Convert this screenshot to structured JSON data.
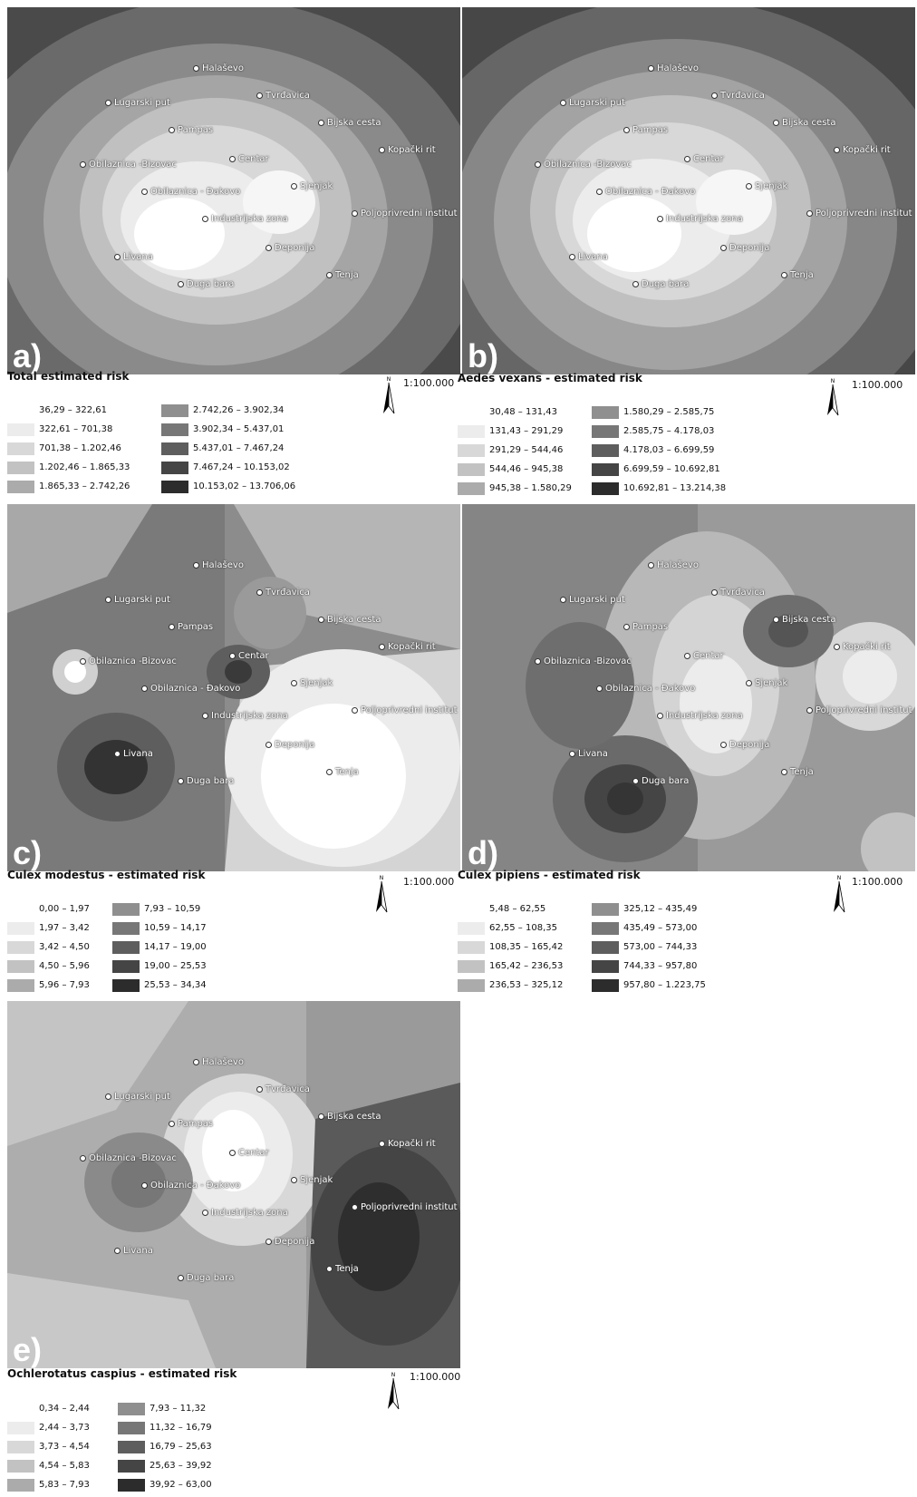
{
  "panels": [
    {
      "id": "a",
      "letter": "a)",
      "title": "Total estimated risk",
      "scale": "1:100.000",
      "places": [
        "Halaševo",
        "Lugarski put",
        "Tvrđavica",
        "Bijska cesta",
        "Pampas",
        "Kopački rit",
        "Obilaznica -Bizovac",
        "Centar",
        "Obilaznica - Đakovo",
        "Sjenjak",
        "Poljoprivredni institut",
        "Industrijska zona",
        "Deponija",
        "Livana",
        "Tenja",
        "Duga bara"
      ],
      "legend": [
        "36,29 – 322,61",
        "322,61 – 701,38",
        "701,38 – 1.202,46",
        "1.202,46 – 1.865,33",
        "1.865,33 – 2.742,26",
        "2.742,26 – 3.902,34",
        "3.902,34 – 5.437,01",
        "5.437,01 – 7.467,24",
        "7.467,24 – 10.153,02",
        "10.153,02 – 13.706,06"
      ]
    },
    {
      "id": "b",
      "letter": "b)",
      "title": "Aedes vexans - estimated risk",
      "scale": "1:100.000",
      "places": [
        "Halaševo",
        "Lugarski put",
        "Tvrđavica",
        "Bijska cesta",
        "Pampas",
        "Kopački rit",
        "Obilaznica -Bizovac",
        "Centar",
        "Obilaznica - Đakovo",
        "Sjenjak",
        "Poljoprivredni institut",
        "Industrijska zona",
        "Deponija",
        "Livana",
        "Tenja",
        "Duga bara"
      ],
      "legend": [
        "30,48 – 131,43",
        "131,43 – 291,29",
        "291,29 – 544,46",
        "544,46 – 945,38",
        "945,38 – 1.580,29",
        "1.580,29 – 2.585,75",
        "2.585,75 – 4.178,03",
        "4.178,03 – 6.699,59",
        "6.699,59 – 10.692,81",
        "10.692,81 – 13.214,38"
      ]
    },
    {
      "id": "c",
      "letter": "c)",
      "title": "Culex modestus - estimated risk",
      "scale": "1:100.000",
      "places": [
        "Halaševo",
        "Lugarski put",
        "Tvrđavica",
        "Bijska cesta",
        "Pampas",
        "Kopački rit",
        "Obilaznica -Bizovac",
        "Centar",
        "Obilaznica - Đakovo",
        "Sjenjak",
        "Poljoprivredni institut",
        "Industrijska zona",
        "Deponija",
        "Livana",
        "Tenja",
        "Duga bara"
      ],
      "legend": [
        "0,00 – 1,97",
        "1,97 – 3,42",
        "3,42 – 4,50",
        "4,50 – 5,96",
        "5,96 – 7,93",
        "7,93 – 10,59",
        "10,59 – 14,17",
        "14,17 – 19,00",
        "19,00 – 25,53",
        "25,53 – 34,34"
      ]
    },
    {
      "id": "d",
      "letter": "d)",
      "title": "Culex pipiens - estimated risk",
      "scale": "1:100.000",
      "places": [
        "Halaševo",
        "Lugarski put",
        "Tvrđavica",
        "Bijska cesta",
        "Pampas",
        "Kopački rit",
        "Obilaznica -Bizovac",
        "Centar",
        "Obilaznica - Đakovo",
        "Sjenjak",
        "Poljoprivredni institut",
        "Industrijska zona",
        "Deponija",
        "Livana",
        "Tenja",
        "Duga bara"
      ],
      "legend": [
        "5,48 – 62,55",
        "62,55 – 108,35",
        "108,35 – 165,42",
        "165,42 – 236,53",
        "236,53 – 325,12",
        "325,12 – 435,49",
        "435,49 – 573,00",
        "573,00 – 744,33",
        "744,33 – 957,80",
        "957,80 – 1.223,75"
      ]
    },
    {
      "id": "e",
      "letter": "e)",
      "title": "Ochlerotatus caspius - estimated risk",
      "scale": "1:100.000",
      "places": [
        "Halaševo",
        "Lugarski put",
        "Tvrđavica",
        "Bijska cesta",
        "Pampas",
        "Kopački rit",
        "Obilaznica -Bizovac",
        "Centar",
        "Obilaznica - Đakovo",
        "Sjenjak",
        "Poljoprivredni institut",
        "Industrijska zona",
        "Deponija",
        "Livana",
        "Tenja",
        "Duga bara"
      ],
      "legend": [
        "0,34 – 2,44",
        "2,44 – 3,73",
        "3,73 – 4,54",
        "4,54 – 5,83",
        "5,83 – 7,93",
        "7,93 – 11,32",
        "11,32 – 16,79",
        "16,79 – 25,63",
        "25,63 – 39,92",
        "39,92 – 63,00"
      ]
    }
  ],
  "legend_colors": [
    "#ffffff",
    "#ececec",
    "#d8d8d8",
    "#c2c2c2",
    "#ababab",
    "#8f8f8f",
    "#777777",
    "#5e5e5e",
    "#454545",
    "#2c2c2c"
  ]
}
